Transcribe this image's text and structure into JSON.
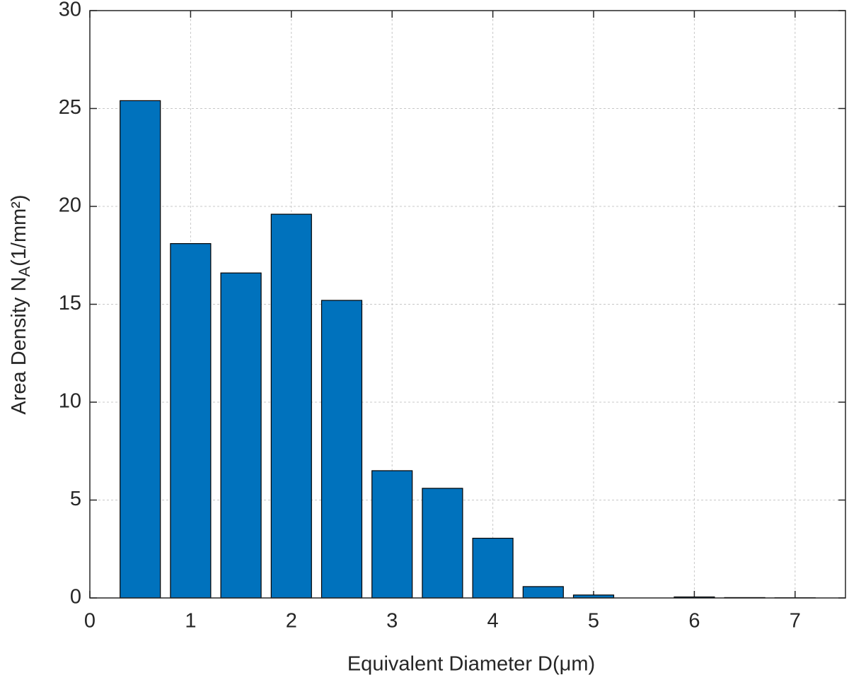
{
  "chart_data": {
    "type": "bar",
    "x_label": "Equivalent Diameter D(μm)",
    "y_label": {
      "text": "Area Density N",
      "subscript": "A",
      "suffix": "(1/mm²)"
    },
    "x": [
      0.5,
      1,
      1.5,
      2,
      2.5,
      3,
      3.5,
      4,
      4.5,
      5,
      5.5,
      6,
      6.5,
      7
    ],
    "values": [
      25.4,
      18.1,
      16.6,
      19.6,
      15.2,
      6.5,
      5.6,
      3.05,
      0.58,
      0.15,
      0,
      0.05,
      0.02,
      0.01
    ],
    "color": "#0072bd",
    "xlim": [
      0,
      7.5
    ],
    "xticks": [
      0,
      1,
      2,
      3,
      4,
      5,
      6,
      7
    ],
    "ylim": [
      0,
      30
    ],
    "yticks": [
      0,
      5,
      10,
      15,
      20,
      25,
      30
    ],
    "grid": true
  }
}
